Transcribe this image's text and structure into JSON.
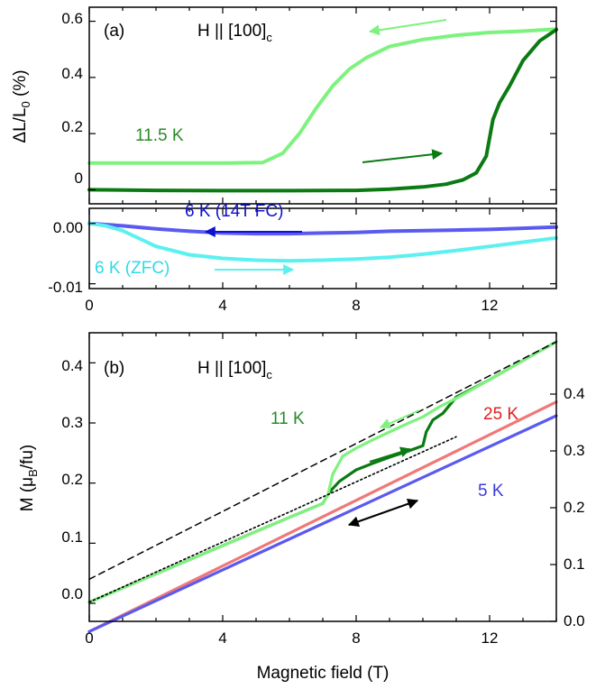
{
  "figure": {
    "xlabel": "Magnetic field (T)",
    "panel_a": {
      "tag": "(a)",
      "field_label_main": "H || [100]",
      "field_label_sub": "c",
      "ylabel_top": {
        "main": "ΔL/L",
        "sub": "0",
        "tail": " (%)"
      },
      "label_115K": "11.5 K",
      "label_6K_14T": "6 K (14T FC)",
      "label_6K_ZFC": "6 K (ZFC)",
      "xticks": [
        "0",
        "4",
        "8",
        "12"
      ],
      "yticks_top": [
        "0",
        "0.2",
        "0.4",
        "0.6"
      ],
      "yticks_bottom": [
        "0.00",
        "-0.01"
      ]
    },
    "panel_b": {
      "tag": "(b)",
      "field_label_main": "H || [100]",
      "field_label_sub": "c",
      "ylabel": {
        "main": "M (μ",
        "sub": "B",
        "tail": "/fu)"
      },
      "label_11K": "11 K",
      "label_25K": "25 K",
      "label_5K": "5 K",
      "xticks": [
        "0",
        "4",
        "8",
        "12"
      ],
      "yticks_left": [
        "0.0",
        "0.1",
        "0.2",
        "0.3",
        "0.4"
      ],
      "yticks_right": [
        "0.0",
        "0.1",
        "0.2",
        "0.3",
        "0.4"
      ]
    }
  },
  "colors": {
    "light_green": "#7ef27e",
    "dark_green": "#0b7a12",
    "blue": "#5a5af0",
    "cyan": "#5cf0f0",
    "arrow_blue": "#1010d0",
    "red": "#f07878",
    "label_green": "#2a8a2a",
    "label_red": "#e02020",
    "label_blue": "#3a3ae0",
    "label_cyan": "#30d8e8"
  },
  "chart_data": [
    {
      "type": "line",
      "panel": "(a) upper",
      "xlim": [
        0,
        14
      ],
      "ylim": [
        -0.05,
        0.65
      ],
      "ylabel": "ΔL/L0 (%)",
      "series": [
        {
          "name": "11.5 K",
          "direction": "down-sweep",
          "color": "#7ef27e",
          "x": [
            0,
            2,
            4,
            5.2,
            5.8,
            6.3,
            6.8,
            7.3,
            7.8,
            8.3,
            9,
            10,
            11,
            12,
            13,
            14
          ],
          "y": [
            0.095,
            0.095,
            0.095,
            0.097,
            0.13,
            0.2,
            0.29,
            0.37,
            0.43,
            0.47,
            0.51,
            0.535,
            0.55,
            0.56,
            0.565,
            0.572
          ]
        },
        {
          "name": "11.5 K",
          "direction": "up-sweep",
          "color": "#0b7a12",
          "x": [
            0,
            2,
            4,
            6,
            8,
            9,
            10,
            10.7,
            11.2,
            11.6,
            11.9,
            12.1,
            12.3,
            12.6,
            13,
            13.5,
            14
          ],
          "y": [
            0.0,
            -0.002,
            -0.003,
            -0.003,
            -0.002,
            0.002,
            0.01,
            0.02,
            0.035,
            0.06,
            0.12,
            0.25,
            0.31,
            0.37,
            0.46,
            0.53,
            0.57
          ]
        }
      ]
    },
    {
      "type": "line",
      "panel": "(a) lower",
      "xlim": [
        0,
        14
      ],
      "ylim": [
        -0.0108,
        0.0025
      ],
      "series": [
        {
          "name": "6 K (14T FC)",
          "color": "#5a5af0",
          "x": [
            0,
            1,
            2,
            3,
            4,
            5,
            6,
            7,
            8,
            9,
            10,
            11,
            12,
            13,
            14
          ],
          "y": [
            0.0,
            -0.0004,
            -0.0009,
            -0.0013,
            -0.0016,
            -0.0017,
            -0.0017,
            -0.0016,
            -0.0015,
            -0.0013,
            -0.0012,
            -0.0011,
            -0.001,
            -0.0008,
            -0.0006
          ]
        },
        {
          "name": "6 K (ZFC)",
          "color": "#5cf0f0",
          "x": [
            0,
            0.5,
            1,
            1.5,
            2,
            3,
            4,
            5,
            6,
            7,
            8,
            9,
            10,
            11,
            12,
            13,
            14
          ],
          "y": [
            0.0,
            -0.0004,
            -0.0012,
            -0.0025,
            -0.0038,
            -0.0052,
            -0.0058,
            -0.0061,
            -0.0062,
            -0.0061,
            -0.0059,
            -0.0056,
            -0.0051,
            -0.0045,
            -0.0038,
            -0.0031,
            -0.0024
          ]
        }
      ]
    },
    {
      "type": "line",
      "panel": "(b)",
      "xlim": [
        0,
        14
      ],
      "ylim": [
        -0.03,
        0.45
      ],
      "ylabel": "M (μB/fu)",
      "series": [
        {
          "name": "11 K",
          "direction": "up-sweep",
          "color": "#0b7a12",
          "x": [
            0,
            2,
            4,
            6,
            7,
            7.2,
            7.5,
            8,
            8.5,
            9,
            9.5,
            10,
            10.1,
            10.3,
            10.6,
            11,
            12,
            13,
            14
          ],
          "y": [
            0.002,
            0.049,
            0.096,
            0.143,
            0.166,
            0.185,
            0.203,
            0.222,
            0.233,
            0.243,
            0.252,
            0.262,
            0.285,
            0.305,
            0.316,
            0.343,
            0.372,
            0.404,
            0.435
          ]
        },
        {
          "name": "11 K",
          "direction": "down-sweep",
          "color": "#7ef27e",
          "x": [
            0,
            2,
            4,
            6,
            7,
            7.15,
            7.3,
            7.6,
            8,
            8.5,
            9,
            9.5,
            10,
            10.5,
            11,
            12,
            13,
            14
          ],
          "y": [
            0.002,
            0.049,
            0.096,
            0.143,
            0.166,
            0.18,
            0.215,
            0.245,
            0.258,
            0.272,
            0.285,
            0.298,
            0.31,
            0.327,
            0.341,
            0.372,
            0.404,
            0.435
          ]
        },
        {
          "name": "25 K",
          "color": "#f07878",
          "x": [
            0,
            14
          ],
          "y": [
            -0.047,
            0.335
          ]
        },
        {
          "name": "5 K",
          "color": "#5a5af0",
          "x": [
            0,
            14
          ],
          "y": [
            -0.047,
            0.312
          ]
        },
        {
          "name": "guide (dashed)",
          "style": "dashed",
          "x": [
            0,
            14
          ],
          "y": [
            0.04,
            0.435
          ]
        },
        {
          "name": "guide (dotted)",
          "style": "dotted",
          "x": [
            0,
            11
          ],
          "y": [
            0.002,
            0.277
          ]
        }
      ]
    }
  ]
}
